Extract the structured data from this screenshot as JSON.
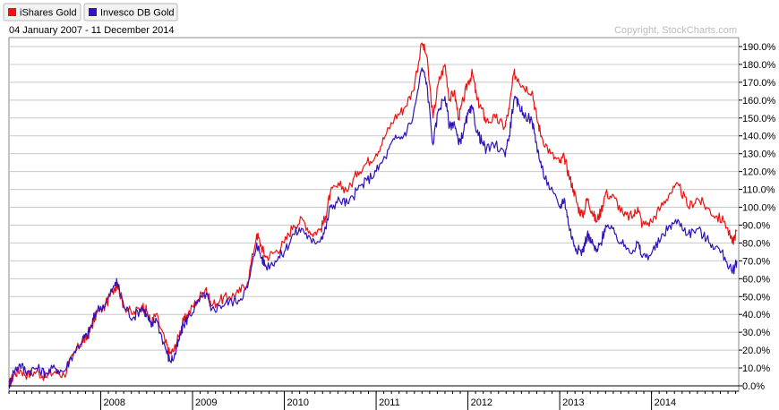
{
  "legend": [
    {
      "label": "iShares Gold",
      "color": "#ee1111"
    },
    {
      "label": "Invesco DB Gold",
      "color": "#3311bb"
    }
  ],
  "date_range": "04 January 2007 - 11 December 2014",
  "copyright": "Copyright, StockCharts.com",
  "chart_data": {
    "type": "line",
    "ylim": [
      -2,
      195
    ],
    "y_ticks": [
      0,
      10,
      20,
      30,
      40,
      50,
      60,
      70,
      80,
      90,
      100,
      110,
      120,
      130,
      140,
      150,
      160,
      170,
      180,
      190
    ],
    "y_tick_labels": [
      "0.0%",
      "10.0%",
      "20.0%",
      "30.0%",
      "40.0%",
      "50.0%",
      "60.0%",
      "70.0%",
      "80.0%",
      "90.0%",
      "100.0%",
      "110.0%",
      "120.0%",
      "130.0%",
      "140.0%",
      "150.0%",
      "160.0%",
      "170.0%",
      "180.0%",
      "190.0%"
    ],
    "x_range": [
      2007.0,
      2014.95
    ],
    "x_ticks": [
      2008,
      2009,
      2010,
      2011,
      2012,
      2013,
      2014
    ],
    "x_tick_labels": [
      "2008",
      "2009",
      "2010",
      "2011",
      "2012",
      "2013",
      "2014"
    ],
    "grid": true,
    "series": [
      {
        "name": "iShares Gold",
        "color": "#ee1111",
        "x": [
          2007.0,
          2007.05,
          2007.12,
          2007.2,
          2007.3,
          2007.4,
          2007.5,
          2007.6,
          2007.7,
          2007.8,
          2007.85,
          2007.9,
          2007.95,
          2008.05,
          2008.15,
          2008.18,
          2008.25,
          2008.35,
          2008.45,
          2008.5,
          2008.55,
          2008.6,
          2008.7,
          2008.75,
          2008.8,
          2008.85,
          2008.9,
          2008.95,
          2009.05,
          2009.15,
          2009.2,
          2009.3,
          2009.4,
          2009.5,
          2009.6,
          2009.7,
          2009.75,
          2009.8,
          2009.9,
          2010.0,
          2010.1,
          2010.2,
          2010.3,
          2010.4,
          2010.45,
          2010.5,
          2010.6,
          2010.7,
          2010.8,
          2010.9,
          2011.0,
          2011.1,
          2011.2,
          2011.3,
          2011.4,
          2011.5,
          2011.55,
          2011.62,
          2011.68,
          2011.75,
          2011.8,
          2011.85,
          2011.9,
          2011.95,
          2012.0,
          2012.05,
          2012.1,
          2012.15,
          2012.2,
          2012.3,
          2012.4,
          2012.45,
          2012.5,
          2012.55,
          2012.6,
          2012.7,
          2012.75,
          2012.8,
          2012.9,
          2013.0,
          2013.05,
          2013.1,
          2013.15,
          2013.2,
          2013.25,
          2013.3,
          2013.35,
          2013.4,
          2013.45,
          2013.5,
          2013.6,
          2013.7,
          2013.8,
          2013.85,
          2013.9,
          2014.0,
          2014.1,
          2014.2,
          2014.3,
          2014.4,
          2014.5,
          2014.6,
          2014.7,
          2014.8,
          2014.88,
          2014.93
        ],
        "y": [
          0,
          6,
          9,
          6,
          8,
          5,
          8,
          6,
          17,
          25,
          27,
          33,
          40,
          45,
          55,
          57,
          45,
          40,
          45,
          42,
          35,
          40,
          25,
          18,
          20,
          28,
          36,
          40,
          48,
          55,
          45,
          48,
          50,
          52,
          58,
          85,
          78,
          72,
          75,
          80,
          90,
          93,
          85,
          88,
          95,
          108,
          112,
          110,
          120,
          125,
          130,
          140,
          150,
          155,
          165,
          192,
          185,
          150,
          170,
          180,
          160,
          165,
          150,
          160,
          170,
          175,
          160,
          155,
          148,
          150,
          145,
          155,
          175,
          172,
          168,
          165,
          150,
          140,
          130,
          125,
          128,
          118,
          110,
          100,
          95,
          105,
          98,
          92,
          98,
          108,
          105,
          95,
          95,
          100,
          90,
          92,
          100,
          108,
          112,
          100,
          105,
          100,
          95,
          92,
          80,
          87
        ]
      },
      {
        "name": "Invesco DB Gold",
        "color": "#3311bb",
        "x": [
          2007.0,
          2007.05,
          2007.12,
          2007.2,
          2007.3,
          2007.4,
          2007.5,
          2007.6,
          2007.7,
          2007.8,
          2007.85,
          2007.9,
          2007.95,
          2008.05,
          2008.15,
          2008.18,
          2008.25,
          2008.35,
          2008.45,
          2008.5,
          2008.55,
          2008.6,
          2008.7,
          2008.75,
          2008.8,
          2008.85,
          2008.9,
          2008.95,
          2009.05,
          2009.15,
          2009.2,
          2009.3,
          2009.4,
          2009.5,
          2009.6,
          2009.7,
          2009.75,
          2009.8,
          2009.9,
          2010.0,
          2010.1,
          2010.2,
          2010.3,
          2010.4,
          2010.45,
          2010.5,
          2010.6,
          2010.7,
          2010.8,
          2010.9,
          2011.0,
          2011.1,
          2011.2,
          2011.3,
          2011.4,
          2011.5,
          2011.55,
          2011.62,
          2011.68,
          2011.75,
          2011.8,
          2011.85,
          2011.9,
          2011.95,
          2012.0,
          2012.05,
          2012.1,
          2012.15,
          2012.2,
          2012.3,
          2012.4,
          2012.45,
          2012.5,
          2012.55,
          2012.6,
          2012.7,
          2012.75,
          2012.8,
          2012.9,
          2013.0,
          2013.05,
          2013.1,
          2013.15,
          2013.2,
          2013.25,
          2013.3,
          2013.35,
          2013.4,
          2013.45,
          2013.5,
          2013.6,
          2013.7,
          2013.8,
          2013.85,
          2013.9,
          2014.0,
          2014.1,
          2014.2,
          2014.3,
          2014.4,
          2014.5,
          2014.6,
          2014.7,
          2014.8,
          2014.88,
          2014.93
        ],
        "y": [
          0,
          8,
          12,
          8,
          10,
          7,
          10,
          8,
          18,
          26,
          28,
          34,
          42,
          46,
          56,
          58,
          45,
          38,
          44,
          40,
          33,
          38,
          22,
          14,
          16,
          25,
          34,
          38,
          46,
          52,
          42,
          45,
          47,
          48,
          55,
          80,
          72,
          67,
          70,
          75,
          85,
          88,
          80,
          83,
          88,
          100,
          104,
          102,
          110,
          115,
          120,
          128,
          138,
          140,
          150,
          178,
          170,
          135,
          155,
          162,
          145,
          148,
          135,
          142,
          152,
          155,
          142,
          137,
          132,
          135,
          130,
          140,
          160,
          158,
          153,
          148,
          135,
          122,
          110,
          100,
          105,
          90,
          80,
          76,
          75,
          85,
          80,
          75,
          80,
          90,
          85,
          78,
          76,
          80,
          72,
          74,
          82,
          90,
          92,
          85,
          88,
          82,
          78,
          72,
          63,
          70
        ]
      }
    ]
  }
}
